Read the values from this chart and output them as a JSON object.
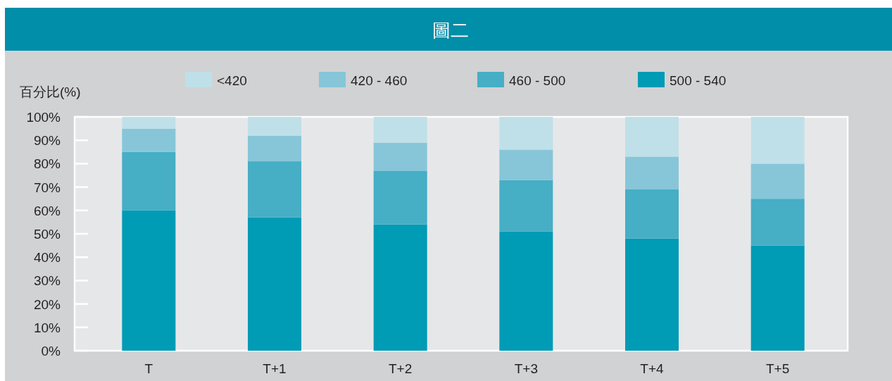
{
  "chart_data": {
    "type": "bar",
    "stacked": true,
    "title": "圖二",
    "ylabel": "百分比(%)",
    "categories": [
      "T",
      "T+1",
      "T+2",
      "T+3",
      "T+4",
      "T+5"
    ],
    "series": [
      {
        "name": "500 - 540",
        "color": "#009bb5",
        "values": [
          60,
          57,
          54,
          51,
          48,
          45
        ]
      },
      {
        "name": "460 - 500",
        "color": "#46aec5",
        "values": [
          25,
          24,
          23,
          22,
          21,
          20
        ]
      },
      {
        "name": "420 - 460",
        "color": "#86c6d8",
        "values": [
          10,
          11,
          12,
          13,
          14,
          15
        ]
      },
      {
        "name": "<420",
        "color": "#bfe0e8",
        "values": [
          5,
          8,
          11,
          14,
          17,
          20
        ]
      }
    ],
    "ylim": [
      0,
      100
    ],
    "yticks": [
      {
        "value": 0,
        "label": "0%"
      },
      {
        "value": 10,
        "label": "10%"
      },
      {
        "value": 20,
        "label": "20%"
      },
      {
        "value": 30,
        "label": "30%"
      },
      {
        "value": 40,
        "label": "40%"
      },
      {
        "value": 50,
        "label": "50%"
      },
      {
        "value": 60,
        "label": "60%"
      },
      {
        "value": 70,
        "label": "70%"
      },
      {
        "value": 80,
        "label": "80%"
      },
      {
        "value": 90,
        "label": "90%"
      },
      {
        "value": 100,
        "label": "100%"
      }
    ],
    "legend": "top"
  }
}
